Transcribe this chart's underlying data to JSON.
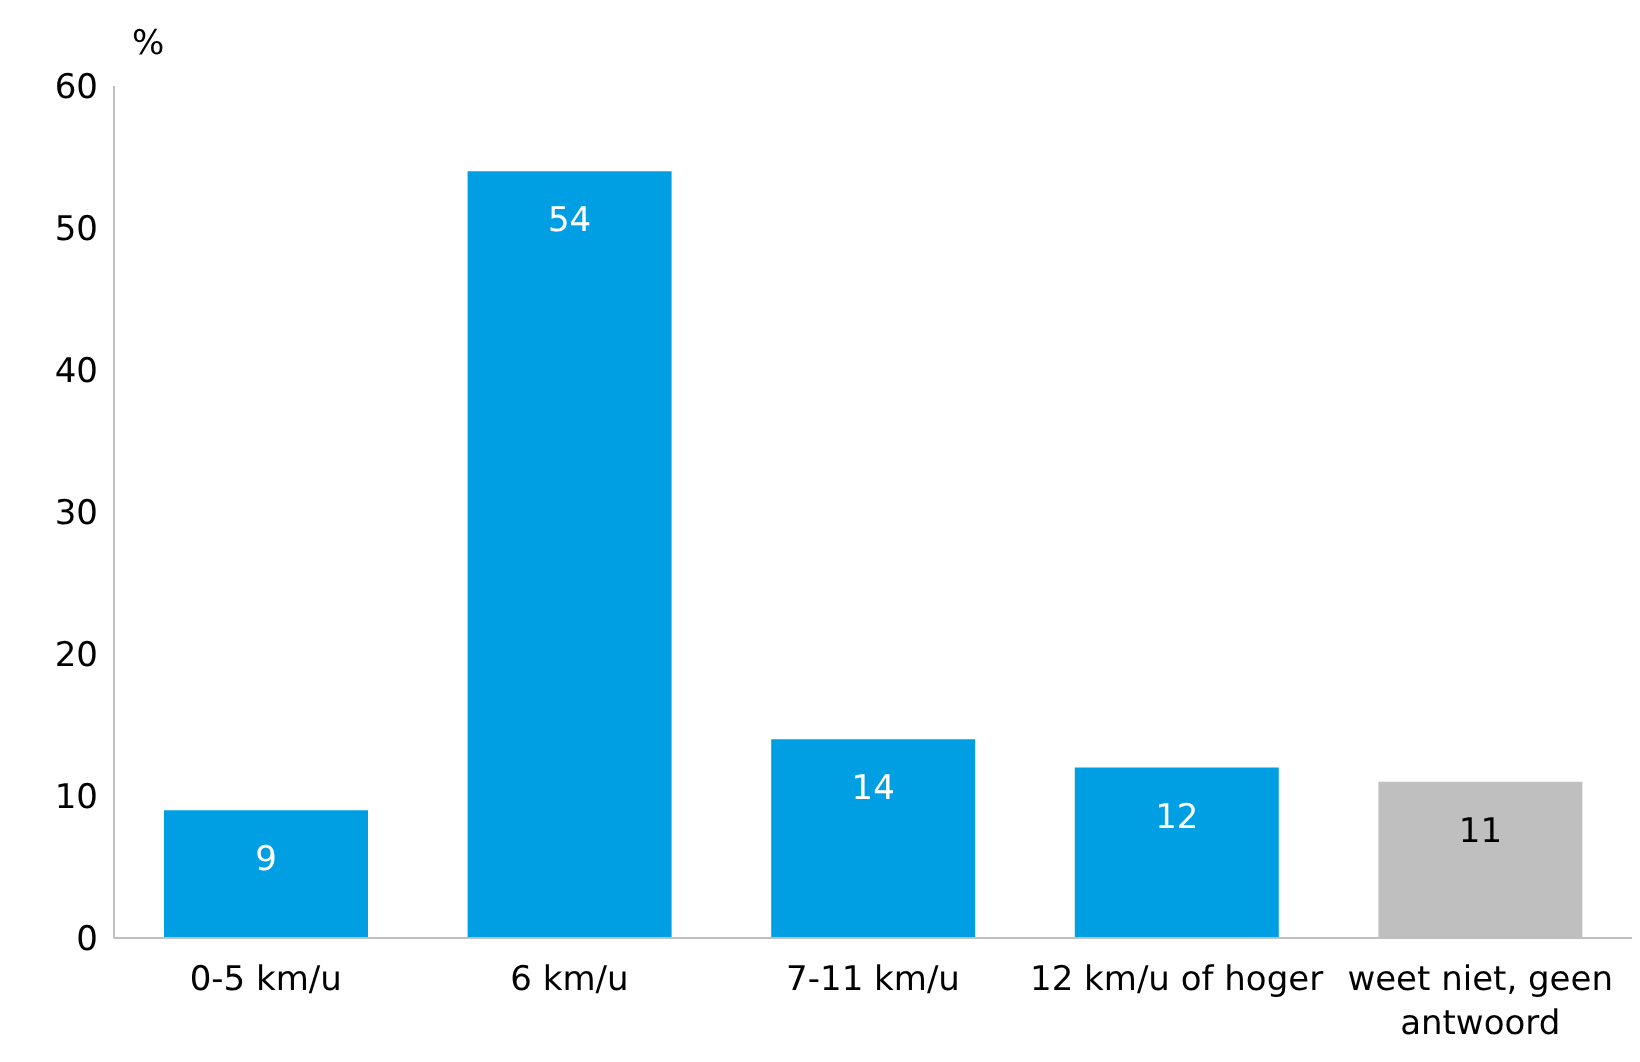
{
  "chart_data": {
    "type": "bar",
    "ylabel": "%",
    "categories": [
      "0-5 km/u",
      "6 km/u",
      "7-11 km/u",
      "12 km/u of hoger",
      "weet niet, geen antwoord"
    ],
    "values": [
      9,
      54,
      14,
      12,
      11
    ],
    "colors": [
      "#009fe3",
      "#009fe3",
      "#009fe3",
      "#009fe3",
      "#bfbfbf"
    ],
    "ylim": [
      0,
      60
    ],
    "yticks": [
      0,
      10,
      20,
      30,
      40,
      50,
      60
    ],
    "data_labels": true,
    "grid": false,
    "legend": false
  }
}
